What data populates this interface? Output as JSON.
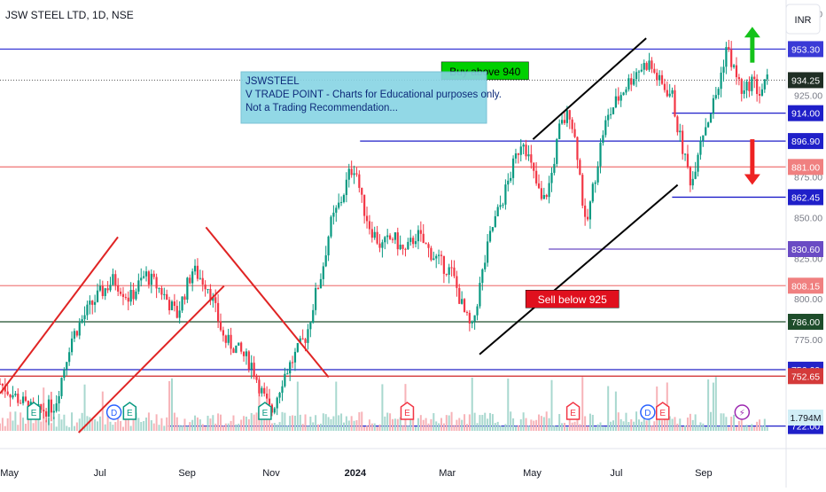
{
  "header": {
    "symbol_title": "JSW STEEL LTD, 1D, NSE",
    "currency_button": "INR"
  },
  "annotation_box": {
    "line1": "JSWSTEEL",
    "line2": "V TRADE POINT - Charts for Educational purposes only.",
    "line3": "Not a Trading Recommendation..."
  },
  "chart_data": {
    "type": "candlestick",
    "title": "JSW STEEL LTD, 1D, NSE",
    "currency": "INR",
    "y_range": [
      718,
      978
    ],
    "y_ticks": [
      {
        "value": 975,
        "label": "975.00"
      },
      {
        "value": 925,
        "label": "925.00"
      },
      {
        "value": 900,
        "label": "900.00"
      },
      {
        "value": 875,
        "label": "875.00"
      },
      {
        "value": 850,
        "label": "850.00"
      },
      {
        "value": 825,
        "label": "825.00"
      },
      {
        "value": 800,
        "label": "800.00"
      },
      {
        "value": 775,
        "label": "775.00"
      },
      {
        "value": 725,
        "label": "725.00"
      }
    ],
    "x_ticks": [
      {
        "frac": 0.012,
        "label": "May",
        "bold": false
      },
      {
        "frac": 0.127,
        "label": "Jul",
        "bold": false
      },
      {
        "frac": 0.238,
        "label": "Sep",
        "bold": false
      },
      {
        "frac": 0.345,
        "label": "Nov",
        "bold": false
      },
      {
        "frac": 0.452,
        "label": "2024",
        "bold": true
      },
      {
        "frac": 0.569,
        "label": "Mar",
        "bold": false
      },
      {
        "frac": 0.677,
        "label": "May",
        "bold": false
      },
      {
        "frac": 0.784,
        "label": "Jul",
        "bold": false
      },
      {
        "frac": 0.895,
        "label": "Sep",
        "bold": false
      }
    ],
    "price_path": [
      [
        0.0,
        748
      ],
      [
        0.02,
        740
      ],
      [
        0.045,
        730
      ],
      [
        0.07,
        735
      ],
      [
        0.09,
        775
      ],
      [
        0.11,
        792
      ],
      [
        0.125,
        802
      ],
      [
        0.145,
        812
      ],
      [
        0.165,
        800
      ],
      [
        0.185,
        815
      ],
      [
        0.205,
        805
      ],
      [
        0.225,
        790
      ],
      [
        0.245,
        818
      ],
      [
        0.265,
        808
      ],
      [
        0.285,
        775
      ],
      [
        0.3,
        770
      ],
      [
        0.32,
        760
      ],
      [
        0.335,
        740
      ],
      [
        0.345,
        730
      ],
      [
        0.36,
        752
      ],
      [
        0.375,
        765
      ],
      [
        0.39,
        778
      ],
      [
        0.4,
        800
      ],
      [
        0.41,
        818
      ],
      [
        0.42,
        845
      ],
      [
        0.435,
        862
      ],
      [
        0.445,
        878
      ],
      [
        0.452,
        882
      ],
      [
        0.46,
        860
      ],
      [
        0.47,
        845
      ],
      [
        0.485,
        832
      ],
      [
        0.5,
        838
      ],
      [
        0.515,
        828
      ],
      [
        0.53,
        840
      ],
      [
        0.545,
        830
      ],
      [
        0.56,
        822
      ],
      [
        0.575,
        816
      ],
      [
        0.59,
        792
      ],
      [
        0.6,
        780
      ],
      [
        0.612,
        812
      ],
      [
        0.625,
        842
      ],
      [
        0.64,
        862
      ],
      [
        0.655,
        885
      ],
      [
        0.665,
        900
      ],
      [
        0.675,
        882
      ],
      [
        0.69,
        858
      ],
      [
        0.7,
        872
      ],
      [
        0.712,
        905
      ],
      [
        0.725,
        915
      ],
      [
        0.735,
        888
      ],
      [
        0.745,
        842
      ],
      [
        0.755,
        870
      ],
      [
        0.768,
        905
      ],
      [
        0.78,
        918
      ],
      [
        0.795,
        930
      ],
      [
        0.81,
        940
      ],
      [
        0.825,
        945
      ],
      [
        0.84,
        932
      ],
      [
        0.855,
        925
      ],
      [
        0.862,
        905
      ],
      [
        0.872,
        885
      ],
      [
        0.88,
        870
      ],
      [
        0.89,
        898
      ],
      [
        0.902,
        912
      ],
      [
        0.914,
        930
      ],
      [
        0.924,
        955
      ],
      [
        0.934,
        940
      ],
      [
        0.946,
        925
      ],
      [
        0.956,
        935
      ],
      [
        0.966,
        926
      ],
      [
        0.976,
        934
      ]
    ],
    "horizontal_levels": [
      {
        "value": 953.3,
        "label": "953.30",
        "color": "#3a3ad6",
        "x_start": 0.0
      },
      {
        "value": 914.0,
        "label": "914.00",
        "color": "#1f1fc9",
        "x_start": 0.855
      },
      {
        "value": 896.9,
        "label": "896.90",
        "color": "#1f1fc9",
        "x_start": 0.458
      },
      {
        "value": 881.0,
        "label": "881.00",
        "color": "#f08080",
        "x_start": 0.0
      },
      {
        "value": 862.45,
        "label": "862.45",
        "color": "#1f1fc9",
        "x_start": 0.855
      },
      {
        "value": 830.6,
        "label": "830.60",
        "color": "#6a4bc4",
        "x_start": 0.698
      },
      {
        "value": 808.15,
        "label": "808.15",
        "color": "#f08080",
        "x_start": 0.0
      },
      {
        "value": 786.0,
        "label": "786.00",
        "color": "#1e4d2b",
        "x_start": 0.0
      },
      {
        "value": 756.6,
        "label": "756.60",
        "color": "#2323c8",
        "x_start": 0.0
      },
      {
        "value": 752.65,
        "label": "752.65",
        "color": "#d43a3a",
        "x_start": 0.0
      },
      {
        "value": 722.0,
        "label": "722.00",
        "color": "#1f1fc9",
        "x_start": 0.214
      }
    ],
    "current_price": {
      "value": 934.25,
      "label": "934.25",
      "color": "#1f2e24"
    },
    "volume_label": "1.794M",
    "trendlines": [
      {
        "color": "#e02424",
        "points": [
          [
            0.0,
            742
          ],
          [
            0.15,
            838
          ]
        ]
      },
      {
        "color": "#e02424",
        "points": [
          [
            0.1,
            718
          ],
          [
            0.285,
            808
          ]
        ]
      },
      {
        "color": "#e02424",
        "points": [
          [
            0.262,
            844
          ],
          [
            0.418,
            752
          ]
        ]
      },
      {
        "color": "#000000",
        "points": [
          [
            0.678,
            898
          ],
          [
            0.822,
            960
          ]
        ]
      },
      {
        "color": "#000000",
        "points": [
          [
            0.61,
            766
          ],
          [
            0.862,
            870
          ]
        ]
      }
    ],
    "callouts": [
      {
        "text": "Buy above 940",
        "value": 940,
        "x_frac": 0.617,
        "bg": "#00d000",
        "fg": "#000000"
      },
      {
        "text": "Sell below 925",
        "value": 800,
        "x_frac": 0.728,
        "bg": "#e0101e",
        "fg": "#ffffff"
      }
    ],
    "arrows": [
      {
        "direction": "up",
        "color": "#14c21a",
        "x_frac": 0.957,
        "from": 945,
        "to": 967
      },
      {
        "direction": "down",
        "color": "#ee2222",
        "x_frac": 0.957,
        "from": 898,
        "to": 870
      }
    ],
    "event_markers": [
      {
        "x_frac": 0.043,
        "letter": "E",
        "kind": "earnings-green"
      },
      {
        "x_frac": 0.145,
        "letter": "D",
        "kind": "dividend-blue"
      },
      {
        "x_frac": 0.165,
        "letter": "E",
        "kind": "earnings-green"
      },
      {
        "x_frac": 0.337,
        "letter": "E",
        "kind": "earnings-green"
      },
      {
        "x_frac": 0.518,
        "letter": "E",
        "kind": "earnings-red"
      },
      {
        "x_frac": 0.729,
        "letter": "E",
        "kind": "earnings-red"
      },
      {
        "x_frac": 0.824,
        "letter": "D",
        "kind": "dividend-blue"
      },
      {
        "x_frac": 0.843,
        "letter": "E",
        "kind": "earnings-red"
      },
      {
        "x_frac": 0.944,
        "letter": "⚡",
        "kind": "split-purple"
      }
    ],
    "grid": false
  }
}
